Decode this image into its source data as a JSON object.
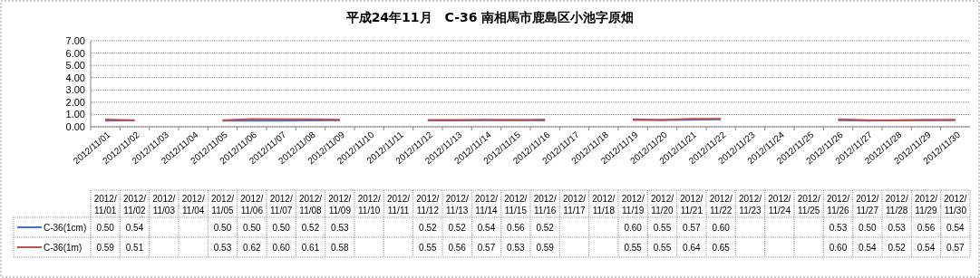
{
  "chart_data": {
    "type": "line",
    "title": "平成24年11月　C-36 南相馬市鹿島区小池字原畑",
    "categories": [
      "2012/11/01",
      "2012/11/02",
      "2012/11/03",
      "2012/11/04",
      "2012/11/05",
      "2012/11/06",
      "2012/11/07",
      "2012/11/08",
      "2012/11/09",
      "2012/11/10",
      "2012/11/11",
      "2012/11/12",
      "2012/11/13",
      "2012/11/14",
      "2012/11/15",
      "2012/11/16",
      "2012/11/17",
      "2012/11/18",
      "2012/11/19",
      "2012/11/20",
      "2012/11/21",
      "2012/11/22",
      "2012/11/23",
      "2012/11/24",
      "2012/11/25",
      "2012/11/26",
      "2012/11/27",
      "2012/11/28",
      "2012/11/29",
      "2012/11/30"
    ],
    "series": [
      {
        "name": "C-36(1cm)",
        "color": "#4472c4",
        "values": [
          0.5,
          0.54,
          null,
          null,
          0.5,
          0.5,
          0.5,
          0.52,
          0.53,
          null,
          null,
          0.52,
          0.52,
          0.54,
          0.56,
          0.52,
          null,
          null,
          0.6,
          0.55,
          0.57,
          0.6,
          null,
          null,
          null,
          0.53,
          0.5,
          0.53,
          0.56,
          0.54
        ],
        "value_labels": [
          "0.50",
          "0.54",
          null,
          null,
          "0.50",
          "0.50",
          "0.50",
          "0.52",
          "0.53",
          null,
          null,
          "0.52",
          "0.52",
          "0.54",
          "0.56",
          "0.52",
          null,
          null,
          "0.60",
          "0.55",
          "0.57",
          "0.60",
          null,
          null,
          null,
          "0.53",
          "0.50",
          "0.53",
          "0.56",
          "0.54"
        ]
      },
      {
        "name": "C-36(1m)",
        "color": "#c0504d",
        "values": [
          0.59,
          0.51,
          null,
          null,
          0.53,
          0.62,
          0.6,
          0.61,
          0.58,
          null,
          null,
          0.55,
          0.56,
          0.57,
          0.53,
          0.59,
          null,
          null,
          0.55,
          0.55,
          0.64,
          0.65,
          null,
          null,
          null,
          0.6,
          0.54,
          0.52,
          0.54,
          0.57
        ],
        "value_labels": [
          "0.59",
          "0.51",
          null,
          null,
          "0.53",
          "0.62",
          "0.60",
          "0.61",
          "0.58",
          null,
          null,
          "0.55",
          "0.56",
          "0.57",
          "0.53",
          "0.59",
          null,
          null,
          "0.55",
          "0.55",
          "0.64",
          "0.65",
          null,
          null,
          null,
          "0.60",
          "0.54",
          "0.52",
          "0.54",
          "0.57"
        ]
      }
    ],
    "ylim": [
      0,
      7
    ],
    "yticks": [
      {
        "value": 0,
        "label": "0.00"
      },
      {
        "value": 1,
        "label": "1.00"
      },
      {
        "value": 2,
        "label": "2.00"
      },
      {
        "value": 3,
        "label": "3.00"
      },
      {
        "value": 4,
        "label": "4.00"
      },
      {
        "value": 5,
        "label": "5.00"
      },
      {
        "value": 6,
        "label": "6.00"
      },
      {
        "value": 7,
        "label": "7.00"
      }
    ],
    "grid": "y",
    "legend": "bottom",
    "marker": "none",
    "line_style": "solid"
  }
}
